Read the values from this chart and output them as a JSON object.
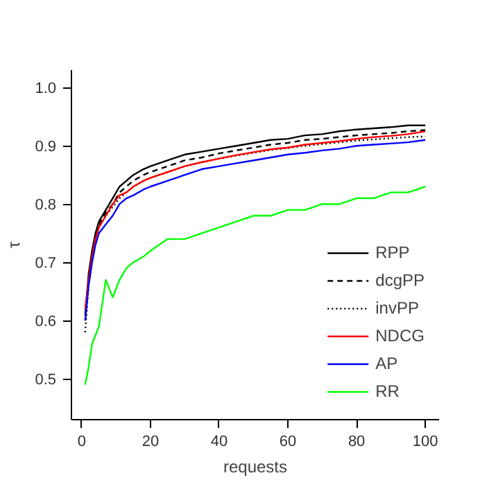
{
  "chart_data": {
    "type": "line",
    "xlabel": "requests",
    "ylabel": "τ",
    "x": [
      1,
      2,
      3,
      4,
      5,
      7,
      9,
      11,
      13,
      15,
      18,
      20,
      25,
      30,
      35,
      40,
      45,
      50,
      55,
      60,
      65,
      70,
      75,
      80,
      85,
      90,
      95,
      100
    ],
    "xlim": [
      -3,
      104
    ],
    "ylim": [
      0.43,
      1.03
    ],
    "xticks": [
      0,
      20,
      40,
      60,
      80,
      100
    ],
    "yticks": [
      0.5,
      0.6,
      0.7,
      0.8,
      0.9,
      {
        "value": 1.0,
        "label": "1.0"
      }
    ],
    "grid": false,
    "legend": "bottom right",
    "marker": "none",
    "series": [
      {
        "name": "RPP",
        "color": "#000000",
        "line_style": "solid",
        "values": [
          0.61,
          0.68,
          0.72,
          0.75,
          0.77,
          0.79,
          0.81,
          0.83,
          0.84,
          0.85,
          0.86,
          0.865,
          0.875,
          0.885,
          0.89,
          0.895,
          0.9,
          0.905,
          0.91,
          0.912,
          0.918,
          0.92,
          0.925,
          0.928,
          0.93,
          0.932,
          0.935,
          0.935
        ]
      },
      {
        "name": "dcgPP",
        "color": "#000000",
        "line_style": "dashed",
        "values": [
          0.6,
          0.67,
          0.71,
          0.745,
          0.765,
          0.785,
          0.8,
          0.82,
          0.83,
          0.84,
          0.85,
          0.855,
          0.865,
          0.875,
          0.88,
          0.887,
          0.892,
          0.897,
          0.902,
          0.905,
          0.91,
          0.912,
          0.915,
          0.918,
          0.92,
          0.922,
          0.925,
          0.927
        ]
      },
      {
        "name": "invPP",
        "color": "#000000",
        "line_style": "dotted",
        "values": [
          0.58,
          0.66,
          0.7,
          0.74,
          0.76,
          0.78,
          0.795,
          0.81,
          0.82,
          0.83,
          0.84,
          0.845,
          0.855,
          0.865,
          0.872,
          0.878,
          0.883,
          0.888,
          0.893,
          0.896,
          0.9,
          0.903,
          0.906,
          0.909,
          0.911,
          0.913,
          0.915,
          0.916
        ]
      },
      {
        "name": "NDCG",
        "color": "#ff0000",
        "line_style": "solid",
        "values": [
          0.62,
          0.67,
          0.71,
          0.74,
          0.76,
          0.78,
          0.8,
          0.815,
          0.82,
          0.83,
          0.84,
          0.845,
          0.855,
          0.865,
          0.872,
          0.878,
          0.884,
          0.889,
          0.894,
          0.897,
          0.902,
          0.905,
          0.908,
          0.912,
          0.915,
          0.917,
          0.92,
          0.925
        ]
      },
      {
        "name": "AP",
        "color": "#0000ff",
        "line_style": "solid",
        "values": [
          0.6,
          0.66,
          0.7,
          0.73,
          0.75,
          0.765,
          0.78,
          0.8,
          0.81,
          0.815,
          0.825,
          0.83,
          0.84,
          0.85,
          0.86,
          0.865,
          0.87,
          0.875,
          0.88,
          0.885,
          0.888,
          0.892,
          0.895,
          0.9,
          0.902,
          0.904,
          0.906,
          0.91
        ]
      },
      {
        "name": "RR",
        "color": "#00ff00",
        "line_style": "solid",
        "values": [
          0.49,
          0.52,
          0.56,
          0.575,
          0.59,
          0.67,
          0.64,
          0.67,
          0.69,
          0.7,
          0.71,
          0.72,
          0.74,
          0.74,
          0.75,
          0.76,
          0.77,
          0.78,
          0.78,
          0.79,
          0.79,
          0.8,
          0.8,
          0.81,
          0.81,
          0.82,
          0.82,
          0.83
        ]
      }
    ]
  }
}
